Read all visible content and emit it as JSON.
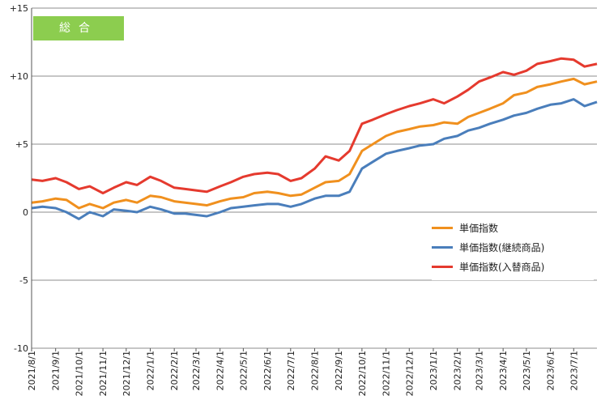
{
  "chart_data": {
    "type": "line",
    "title": "総合",
    "ylim": [
      -10,
      15
    ],
    "yticks": [
      15,
      10,
      5,
      0,
      -5,
      -10
    ],
    "ytick_labels": [
      "+15",
      "+10",
      "+5",
      "0",
      "-5",
      "-10"
    ],
    "xtick_labels": [
      "2021/8/1",
      "2021/9/1",
      "2021/10/1",
      "2021/11/1",
      "2021/12/1",
      "2022/1/1",
      "2022/2/1",
      "2022/3/1",
      "2022/4/1",
      "2022/5/1",
      "2022/6/1",
      "2022/7/1",
      "2022/8/1",
      "2022/9/1",
      "2022/10/1",
      "2022/11/1",
      "2022/12/1",
      "2023/1/1",
      "2023/2/1",
      "2023/3/1",
      "2023/4/1",
      "2023/5/1",
      "2023/6/1",
      "2023/7/1"
    ],
    "x": [
      "2021-08-01",
      "2021-08-15",
      "2021-09-01",
      "2021-09-15",
      "2021-10-01",
      "2021-10-15",
      "2021-11-01",
      "2021-11-15",
      "2021-12-01",
      "2021-12-15",
      "2022-01-01",
      "2022-01-15",
      "2022-02-01",
      "2022-02-15",
      "2022-03-01",
      "2022-03-15",
      "2022-04-01",
      "2022-04-15",
      "2022-05-01",
      "2022-05-15",
      "2022-06-01",
      "2022-06-15",
      "2022-07-01",
      "2022-07-15",
      "2022-08-01",
      "2022-08-15",
      "2022-09-01",
      "2022-09-15",
      "2022-10-01",
      "2022-10-15",
      "2022-11-01",
      "2022-11-15",
      "2022-12-01",
      "2022-12-15",
      "2023-01-01",
      "2023-01-15",
      "2023-02-01",
      "2023-02-15",
      "2023-03-01",
      "2023-03-15",
      "2023-04-01",
      "2023-04-15",
      "2023-05-01",
      "2023-05-15",
      "2023-06-01",
      "2023-06-15",
      "2023-07-01",
      "2023-07-15",
      "2023-07-31"
    ],
    "series": [
      {
        "name": "単価指数",
        "color": "#f0901e",
        "values": [
          0.7,
          0.8,
          1.0,
          0.9,
          0.3,
          0.6,
          0.3,
          0.7,
          0.9,
          0.7,
          1.2,
          1.1,
          0.8,
          0.7,
          0.6,
          0.5,
          0.8,
          1.0,
          1.1,
          1.4,
          1.5,
          1.4,
          1.2,
          1.3,
          1.8,
          2.2,
          2.3,
          2.8,
          4.5,
          5.0,
          5.6,
          5.9,
          6.1,
          6.3,
          6.4,
          6.6,
          6.5,
          7.0,
          7.3,
          7.6,
          8.0,
          8.6,
          8.8,
          9.2,
          9.4,
          9.6,
          9.8,
          9.4,
          9.6
        ]
      },
      {
        "name": "単価指数(継続商品)",
        "color": "#4a7ebb",
        "values": [
          0.3,
          0.4,
          0.3,
          0.0,
          -0.5,
          0.0,
          -0.3,
          0.2,
          0.1,
          0.0,
          0.4,
          0.2,
          -0.1,
          -0.1,
          -0.2,
          -0.3,
          0.0,
          0.3,
          0.4,
          0.5,
          0.6,
          0.6,
          0.4,
          0.6,
          1.0,
          1.2,
          1.2,
          1.5,
          3.2,
          3.7,
          4.3,
          4.5,
          4.7,
          4.9,
          5.0,
          5.4,
          5.6,
          6.0,
          6.2,
          6.5,
          6.8,
          7.1,
          7.3,
          7.6,
          7.9,
          8.0,
          8.3,
          7.8,
          8.1
        ]
      },
      {
        "name": "単価指数(入替商品)",
        "color": "#e53a2e",
        "values": [
          2.4,
          2.3,
          2.5,
          2.2,
          1.7,
          1.9,
          1.4,
          1.8,
          2.2,
          2.0,
          2.6,
          2.3,
          1.8,
          1.7,
          1.6,
          1.5,
          1.9,
          2.2,
          2.6,
          2.8,
          2.9,
          2.8,
          2.3,
          2.5,
          3.2,
          4.1,
          3.8,
          4.5,
          6.5,
          6.8,
          7.2,
          7.5,
          7.8,
          8.0,
          8.3,
          8.0,
          8.5,
          9.0,
          9.6,
          9.9,
          10.3,
          10.1,
          10.4,
          10.9,
          11.1,
          11.3,
          11.2,
          10.7,
          10.9
        ]
      }
    ]
  }
}
